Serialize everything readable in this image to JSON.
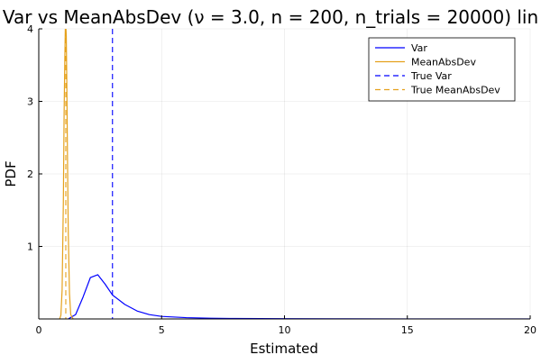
{
  "chart_data": {
    "type": "line",
    "title": "Var vs MeanAbsDev (ν = 3.0, n = 200, n_trials = 20000) lin",
    "xlabel": "Estimated",
    "ylabel": "PDF",
    "xlim": [
      0,
      20
    ],
    "ylim": [
      0,
      4
    ],
    "x_ticks": [
      0,
      5,
      10,
      15,
      20
    ],
    "y_ticks": [
      1,
      2,
      3,
      4
    ],
    "x_tick_labels": [
      "0",
      "5",
      "10",
      "15",
      "20"
    ],
    "y_tick_labels": [
      "1",
      "2",
      "3",
      "4"
    ],
    "grid": true,
    "legend_position": "top-right",
    "series": [
      {
        "name": "Var",
        "color": "#0000ff",
        "style": "solid",
        "x": [
          1.2,
          1.5,
          1.8,
          2.1,
          2.4,
          2.7,
          3.0,
          3.5,
          4.0,
          4.5,
          5.0,
          6.0,
          7.0,
          8.0,
          10.0,
          12.0,
          15.0,
          20.0
        ],
        "y": [
          0.0,
          0.06,
          0.3,
          0.57,
          0.61,
          0.48,
          0.33,
          0.2,
          0.11,
          0.06,
          0.035,
          0.018,
          0.01,
          0.006,
          0.003,
          0.0015,
          0.0006,
          0.0
        ]
      },
      {
        "name": "MeanAbsDev",
        "color": "#e5a11c",
        "style": "solid",
        "x": [
          0.85,
          0.9,
          0.95,
          1.0,
          1.03,
          1.06,
          1.08,
          1.1,
          1.12,
          1.14,
          1.17,
          1.2,
          1.25,
          1.3,
          1.4
        ],
        "y": [
          0.0,
          0.05,
          0.4,
          1.6,
          2.8,
          3.6,
          4.0,
          4.05,
          3.9,
          3.3,
          2.2,
          1.2,
          0.35,
          0.06,
          0.0
        ]
      },
      {
        "name": "True Var",
        "color": "#0000ff",
        "style": "dashed",
        "vline": 3.0
      },
      {
        "name": "True MeanAbsDev",
        "color": "#e5a11c",
        "style": "dashed",
        "vline": 1.1
      }
    ]
  }
}
